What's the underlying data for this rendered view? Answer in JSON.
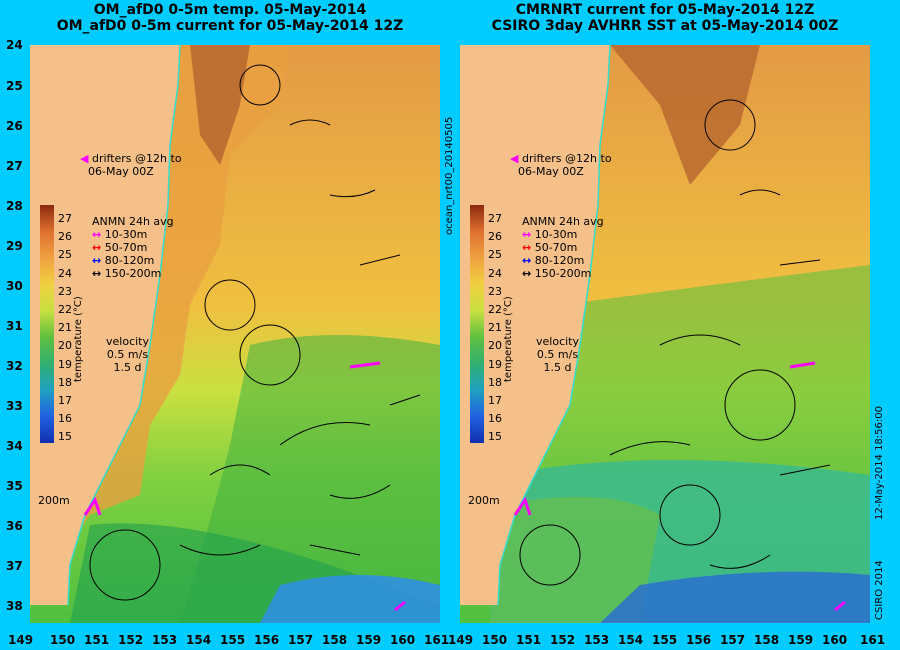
{
  "left_panel": {
    "title_line1": "OM_afD0 0-5m temp. 05-May-2014",
    "title_line2": "OM_afD0 0-5m current for 05-May-2014 12Z"
  },
  "right_panel": {
    "title_line1": "CMRNRT current for 05-May-2014 12Z",
    "title_line2": "CSIRO 3day AVHRR SST at 05-May-2014 00Z"
  },
  "lat_ticks": [
    "24",
    "25",
    "26",
    "27",
    "28",
    "29",
    "30",
    "31",
    "32",
    "33",
    "34",
    "35",
    "36",
    "37",
    "38"
  ],
  "lon_ticks": [
    "149",
    "150",
    "151",
    "152",
    "153",
    "154",
    "155",
    "156",
    "157",
    "158",
    "159",
    "160",
    "161"
  ],
  "annotations": {
    "drifters_line1": "drifters @12h to",
    "drifters_line2": "06-May 00Z",
    "depth_label": "200m",
    "velocity_label": "velocity",
    "velocity_scale": "0.5 m/s",
    "velocity_time": "1.5 d"
  },
  "anmn_legend": {
    "title": "ANMN 24h avg",
    "items": [
      {
        "label": "10-30m",
        "color": "#ff00ff"
      },
      {
        "label": "50-70m",
        "color": "#ff0000"
      },
      {
        "label": "80-120m",
        "color": "#0000ff"
      },
      {
        "label": "150-200m",
        "color": "#000000"
      }
    ]
  },
  "colorbar": {
    "title": "temperature (°C)",
    "ticks": [
      "27",
      "26",
      "25",
      "24",
      "23",
      "22",
      "21",
      "20",
      "19",
      "18",
      "17",
      "16",
      "15"
    ]
  },
  "side_labels": {
    "run_id": "ocean_nrt00_20140505",
    "timestamp": "12-May-2014 18:56:00",
    "credit": "CSIRO 2014"
  }
}
